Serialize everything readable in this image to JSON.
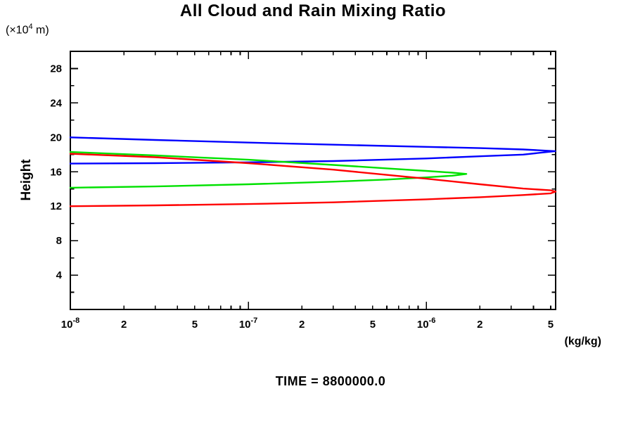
{
  "chart_data": {
    "type": "line",
    "title": "All Cloud and Rain Mixing Ratio",
    "annotation": "TIME = 8800000.0",
    "x_axis": {
      "units": "(kg/kg)",
      "scale": "log",
      "min": 1e-08,
      "max": 5.33e-06,
      "major_ticks": [
        1e-08,
        1e-07,
        1e-06
      ],
      "labels": [
        {
          "value": 1e-08,
          "base": "10",
          "sup": "-8"
        },
        {
          "value": 2e-08,
          "text": "2"
        },
        {
          "value": 5e-08,
          "text": "5"
        },
        {
          "value": 1e-07,
          "base": "10",
          "sup": "-7"
        },
        {
          "value": 2e-07,
          "text": "2"
        },
        {
          "value": 5e-07,
          "text": "5"
        },
        {
          "value": 1e-06,
          "base": "10",
          "sup": "-6"
        },
        {
          "value": 2e-06,
          "text": "2"
        },
        {
          "value": 5e-06,
          "text": "5"
        }
      ]
    },
    "y_axis": {
      "label": "Height",
      "units": {
        "pre": "(×10",
        "sup": "4",
        "post": " m)"
      },
      "min": 0,
      "max": 30,
      "minor_step": 2,
      "major_step": 4,
      "labeled_ticks": [
        4,
        8,
        12,
        16,
        20,
        24,
        28
      ]
    },
    "series": [
      {
        "name": "blue",
        "color": "#0000ff",
        "points": [
          [
            1e-08,
            20.0
          ],
          [
            3e-08,
            19.7
          ],
          [
            1e-07,
            19.4
          ],
          [
            3e-07,
            19.15
          ],
          [
            1e-06,
            18.9
          ],
          [
            2e-06,
            18.75
          ],
          [
            3.5e-06,
            18.6
          ],
          [
            5.3e-06,
            18.4
          ],
          [
            3.5e-06,
            18.0
          ],
          [
            2e-06,
            17.8
          ],
          [
            1e-06,
            17.55
          ],
          [
            3e-07,
            17.25
          ],
          [
            1e-07,
            17.1
          ],
          [
            3e-08,
            17.0
          ],
          [
            1e-08,
            16.95
          ]
        ]
      },
      {
        "name": "green",
        "color": "#00e100",
        "points": [
          [
            1e-08,
            18.3
          ],
          [
            3e-08,
            17.9
          ],
          [
            1e-07,
            17.4
          ],
          [
            3e-07,
            16.8
          ],
          [
            6e-07,
            16.4
          ],
          [
            1e-06,
            16.1
          ],
          [
            1.4e-06,
            15.9
          ],
          [
            1.68e-06,
            15.75
          ],
          [
            1.4e-06,
            15.55
          ],
          [
            1e-06,
            15.35
          ],
          [
            6e-07,
            15.1
          ],
          [
            3e-07,
            14.85
          ],
          [
            1e-07,
            14.55
          ],
          [
            3e-08,
            14.3
          ],
          [
            1e-08,
            14.15
          ]
        ]
      },
      {
        "name": "red",
        "color": "#ff0000",
        "points": [
          [
            1e-08,
            18.1
          ],
          [
            3e-08,
            17.7
          ],
          [
            1e-07,
            17.0
          ],
          [
            3e-07,
            16.25
          ],
          [
            1e-06,
            15.2
          ],
          [
            2e-06,
            14.55
          ],
          [
            3.5e-06,
            14.05
          ],
          [
            5e-06,
            13.85
          ],
          [
            5.33e-06,
            13.7
          ],
          [
            5e-06,
            13.5
          ],
          [
            3.5e-06,
            13.3
          ],
          [
            2e-06,
            13.05
          ],
          [
            1e-06,
            12.8
          ],
          [
            3e-07,
            12.45
          ],
          [
            1e-07,
            12.25
          ],
          [
            3e-08,
            12.1
          ],
          [
            1e-08,
            12.0
          ]
        ]
      }
    ]
  }
}
